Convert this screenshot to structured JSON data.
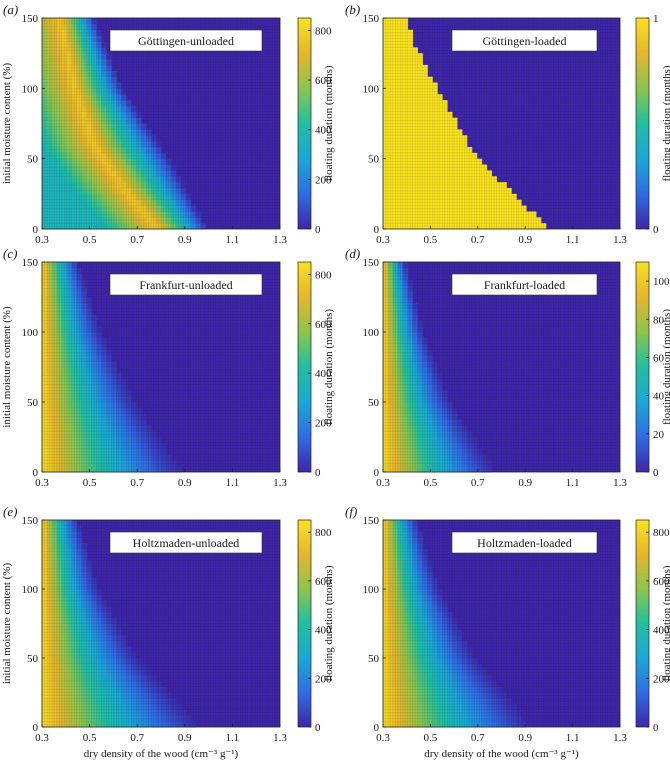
{
  "chart_data": [
    {
      "type": "heatmap",
      "panel_label": "(a)",
      "title": "Göttingen-unloaded",
      "ylabel": "initial moisture content (%)",
      "xlabel": "",
      "colorbar_label": "floating duration (months)",
      "xlim": [
        0.3,
        1.3
      ],
      "ylim": [
        0,
        150
      ],
      "x_ticks": [
        "0.3",
        "0.5",
        "0.7",
        "0.9",
        "1.1",
        "1.3"
      ],
      "y_ticks": [
        "0",
        "50",
        "100",
        "150"
      ],
      "colorbar_range": [
        0,
        850
      ],
      "colorbar_ticks": [
        "0",
        "200",
        "400",
        "600",
        "800"
      ],
      "boundary_density_at_moisture": [
        [
          0,
          1.0
        ],
        [
          50,
          0.84
        ],
        [
          100,
          0.64
        ],
        [
          150,
          0.52
        ]
      ],
      "peak_band": [
        [
          0,
          0.79
        ],
        [
          30,
          0.64
        ],
        [
          60,
          0.52
        ],
        [
          100,
          0.44
        ],
        [
          150,
          0.38
        ]
      ],
      "peak_value": 800
    },
    {
      "type": "heatmap",
      "panel_label": "(b)",
      "title": "Göttingen-loaded",
      "ylabel": "",
      "xlabel": "",
      "colorbar_label": "floating duration (months)",
      "xlim": [
        0.3,
        1.3
      ],
      "ylim": [
        0,
        150
      ],
      "x_ticks": [
        "0.3",
        "0.5",
        "0.7",
        "0.9",
        "1.1",
        "1.3"
      ],
      "y_ticks": [
        "0",
        "50",
        "100",
        "150"
      ],
      "colorbar_range": [
        0,
        1
      ],
      "colorbar_ticks": [
        "0",
        "1"
      ],
      "binary_boundary": [
        [
          0,
          1.0
        ],
        [
          25,
          0.85
        ],
        [
          50,
          0.7
        ],
        [
          75,
          0.61
        ],
        [
          100,
          0.53
        ],
        [
          125,
          0.45
        ],
        [
          150,
          0.39
        ]
      ]
    },
    {
      "type": "heatmap",
      "panel_label": "(c)",
      "title": "Frankfurt-unloaded",
      "ylabel": "initial moisture content (%)",
      "xlabel": "",
      "colorbar_label": "floating duration (months)",
      "xlim": [
        0.3,
        1.3
      ],
      "ylim": [
        0,
        150
      ],
      "x_ticks": [
        "0.3",
        "0.5",
        "0.7",
        "0.9",
        "1.1",
        "1.3"
      ],
      "y_ticks": [
        "0",
        "50",
        "100",
        "150"
      ],
      "colorbar_range": [
        0,
        850
      ],
      "colorbar_ticks": [
        "0",
        "200",
        "400",
        "600",
        "800"
      ],
      "boundary_density_at_moisture": [
        [
          0,
          0.92
        ],
        [
          50,
          0.71
        ],
        [
          100,
          0.56
        ],
        [
          150,
          0.46
        ]
      ],
      "max_value": 850
    },
    {
      "type": "heatmap",
      "panel_label": "(d)",
      "title": "Frankfurt-loaded",
      "ylabel": "",
      "xlabel": "",
      "colorbar_label": "floating duration (months)",
      "xlim": [
        0.3,
        1.3
      ],
      "ylim": [
        0,
        150
      ],
      "x_ticks": [
        "0.3",
        "0.5",
        "0.7",
        "0.9",
        "1.1",
        "1.3"
      ],
      "y_ticks": [
        "0",
        "50",
        "100",
        "150"
      ],
      "colorbar_range": [
        0,
        110
      ],
      "colorbar_ticks": [
        "0",
        "20",
        "40",
        "60",
        "80",
        "100"
      ],
      "boundary_density_at_moisture": [
        [
          0,
          0.8
        ],
        [
          50,
          0.6
        ],
        [
          100,
          0.48
        ],
        [
          150,
          0.4
        ]
      ],
      "max_value": 110
    },
    {
      "type": "heatmap",
      "panel_label": "(e)",
      "title": "Holtzmaden-unloaded",
      "ylabel": "initial moisture content (%)",
      "xlabel": "dry density of the wood (cm⁻³ g⁻¹)",
      "colorbar_label": "floating duration (months)",
      "xlim": [
        0.3,
        1.3
      ],
      "ylim": [
        0,
        150
      ],
      "x_ticks": [
        "0.3",
        "0.5",
        "0.7",
        "0.9",
        "1.1",
        "1.3"
      ],
      "y_ticks": [
        "0",
        "50",
        "100",
        "150"
      ],
      "colorbar_range": [
        0,
        850
      ],
      "colorbar_ticks": [
        "0",
        "200",
        "400",
        "600",
        "800"
      ],
      "boundary_density_at_moisture": [
        [
          0,
          1.0
        ],
        [
          50,
          0.72
        ],
        [
          100,
          0.55
        ],
        [
          150,
          0.46
        ]
      ],
      "max_value": 850
    },
    {
      "type": "heatmap",
      "panel_label": "(f)",
      "title": "Holtzmaden-loaded",
      "ylabel": "",
      "xlabel": "dry density of the wood (cm⁻³ g⁻¹)",
      "colorbar_label": "floating duration (months)",
      "xlim": [
        0.3,
        1.3
      ],
      "ylim": [
        0,
        150
      ],
      "x_ticks": [
        "0.3",
        "0.5",
        "0.7",
        "0.9",
        "1.1",
        "1.3"
      ],
      "y_ticks": [
        "0",
        "50",
        "100",
        "150"
      ],
      "colorbar_range": [
        0,
        850
      ],
      "colorbar_ticks": [
        "0",
        "200",
        "400",
        "600",
        "800"
      ],
      "boundary_density_at_moisture": [
        [
          0,
          0.96
        ],
        [
          50,
          0.71
        ],
        [
          100,
          0.55
        ],
        [
          150,
          0.45
        ]
      ],
      "max_value": 850
    }
  ],
  "colormap": [
    "#3e26a8",
    "#2f6ce4",
    "#1aa8d6",
    "#21bfa0",
    "#8cc54e",
    "#e6b52d",
    "#f9e21f"
  ]
}
